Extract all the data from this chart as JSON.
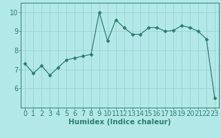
{
  "x": [
    0,
    1,
    2,
    3,
    4,
    5,
    6,
    7,
    8,
    9,
    10,
    11,
    12,
    13,
    14,
    15,
    16,
    17,
    18,
    19,
    20,
    21,
    22,
    23
  ],
  "y": [
    7.3,
    6.8,
    7.2,
    6.7,
    7.1,
    7.5,
    7.6,
    7.7,
    7.8,
    10.0,
    8.5,
    9.6,
    9.2,
    8.85,
    8.85,
    9.2,
    9.2,
    9.0,
    9.05,
    9.3,
    9.2,
    9.0,
    8.6,
    5.5
  ],
  "line_color": "#2d7d6e",
  "marker": "D",
  "marker_size": 2.5,
  "bg_color": "#b3e8e8",
  "grid_color": "#9ed4d4",
  "xlabel": "Humidex (Indice chaleur)",
  "ylim": [
    5.0,
    10.5
  ],
  "xlim": [
    -0.5,
    23.5
  ],
  "yticks": [
    6,
    7,
    8,
    9,
    10
  ],
  "xticks": [
    0,
    1,
    2,
    3,
    4,
    5,
    6,
    7,
    8,
    9,
    10,
    11,
    12,
    13,
    14,
    15,
    16,
    17,
    18,
    19,
    20,
    21,
    22,
    23
  ],
  "tick_color": "#2d7d6e",
  "label_color": "#2d7d6e",
  "font_size_xlabel": 7.5,
  "font_size_ticks": 7
}
